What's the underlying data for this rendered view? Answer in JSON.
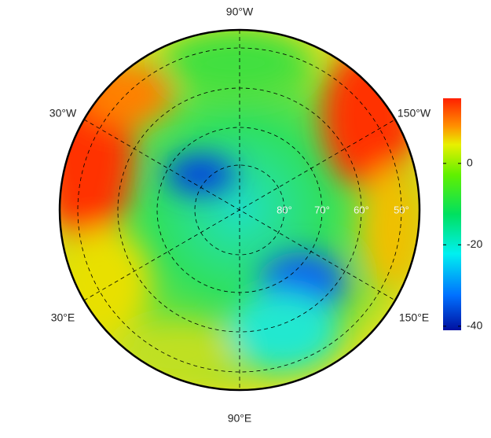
{
  "map": {
    "longitude_labels": [
      "90°W",
      "30°W",
      "150°W",
      "30°E",
      "150°E",
      "90°E"
    ],
    "latitude_labels": [
      "80°",
      "70°",
      "60°",
      "50°"
    ],
    "colorbar": {
      "range": [
        -41,
        16
      ],
      "ticks": [
        0,
        -20,
        -40
      ]
    }
  }
}
